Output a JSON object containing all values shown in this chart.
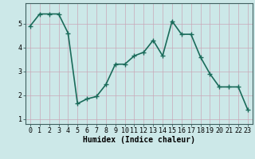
{
  "x": [
    0,
    1,
    2,
    3,
    4,
    5,
    6,
    7,
    8,
    9,
    10,
    11,
    12,
    13,
    14,
    15,
    16,
    17,
    18,
    19,
    20,
    21,
    22,
    23
  ],
  "y": [
    4.9,
    5.4,
    5.4,
    5.4,
    4.6,
    1.65,
    1.85,
    1.95,
    2.45,
    3.3,
    3.3,
    3.65,
    3.8,
    4.3,
    3.65,
    5.1,
    4.55,
    4.55,
    3.6,
    2.9,
    2.35,
    2.35,
    2.35,
    1.4
  ],
  "line_color": "#1a6b5a",
  "marker": "+",
  "marker_size": 4,
  "bg_color": "#cce8e8",
  "grid_color": "#b0c8c8",
  "xlabel": "Humidex (Indice chaleur)",
  "xlabel_fontsize": 7,
  "tick_fontsize": 6,
  "ylabel_ticks": [
    1,
    2,
    3,
    4,
    5
  ],
  "xlim": [
    -0.5,
    23.5
  ],
  "ylim": [
    0.8,
    5.85
  ],
  "line_width": 1.2
}
